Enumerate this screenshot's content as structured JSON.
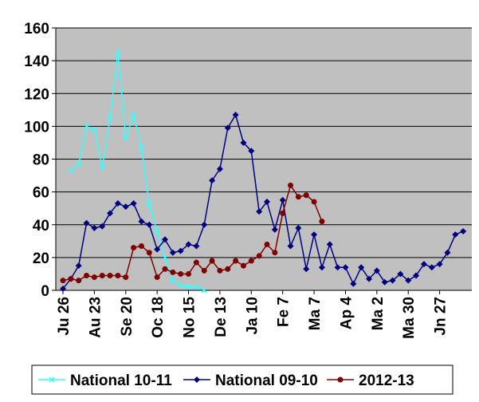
{
  "chart_data": {
    "type": "line",
    "title": "",
    "xlabel": "",
    "ylabel": "",
    "ylim": [
      0,
      160
    ],
    "yticks": [
      0,
      20,
      40,
      60,
      80,
      100,
      120,
      140,
      160
    ],
    "x_tick_labels": [
      {
        "index": 0,
        "label": "Ju 26"
      },
      {
        "index": 4,
        "label": "Au 23"
      },
      {
        "index": 8,
        "label": "Se 20"
      },
      {
        "index": 12,
        "label": "Oc 18"
      },
      {
        "index": 16,
        "label": "No 15"
      },
      {
        "index": 20,
        "label": "De 13"
      },
      {
        "index": 24,
        "label": "Ja 10"
      },
      {
        "index": 28,
        "label": "Fe 7"
      },
      {
        "index": 32,
        "label": "Ma 7"
      },
      {
        "index": 36,
        "label": "Ap 4"
      },
      {
        "index": 40,
        "label": "Ma 2"
      },
      {
        "index": 44,
        "label": "Ma 30"
      },
      {
        "index": 48,
        "label": "Jn 27"
      }
    ],
    "x_count": 53,
    "grid": "horizontal",
    "plot_background": "#c0c0c0",
    "legend_position": "bottom",
    "series": [
      {
        "name": "National 10-11",
        "color": "#33ffff",
        "marker": "x",
        "start_index": 1,
        "values": [
          73,
          77,
          100,
          98,
          75,
          105,
          145,
          93,
          107,
          87,
          52,
          36,
          20,
          6,
          3,
          2,
          2,
          0
        ]
      },
      {
        "name": "National 09-10",
        "color": "#000080",
        "marker": "diamond",
        "start_index": 0,
        "values": [
          1,
          7,
          15,
          41,
          38,
          39,
          47,
          53,
          51,
          53,
          42,
          40,
          25,
          31,
          23,
          24,
          28,
          27,
          40,
          67,
          74,
          99,
          107,
          90,
          85,
          48,
          54,
          37,
          55,
          27,
          38,
          13,
          34,
          14,
          28,
          14,
          14,
          4,
          14,
          7,
          12,
          5,
          6,
          10,
          6,
          9,
          16,
          14,
          16,
          23,
          34,
          36
        ]
      },
      {
        "name": "2012-13",
        "color": "#800000",
        "marker": "circle",
        "start_index": 0,
        "values": [
          6,
          7,
          6,
          9,
          8,
          9,
          9,
          9,
          8,
          26,
          27,
          23,
          8,
          13,
          11,
          10,
          10,
          17,
          12,
          18,
          12,
          13,
          18,
          15,
          18,
          21,
          28,
          23,
          47,
          64,
          57,
          58,
          54,
          42
        ]
      }
    ]
  }
}
